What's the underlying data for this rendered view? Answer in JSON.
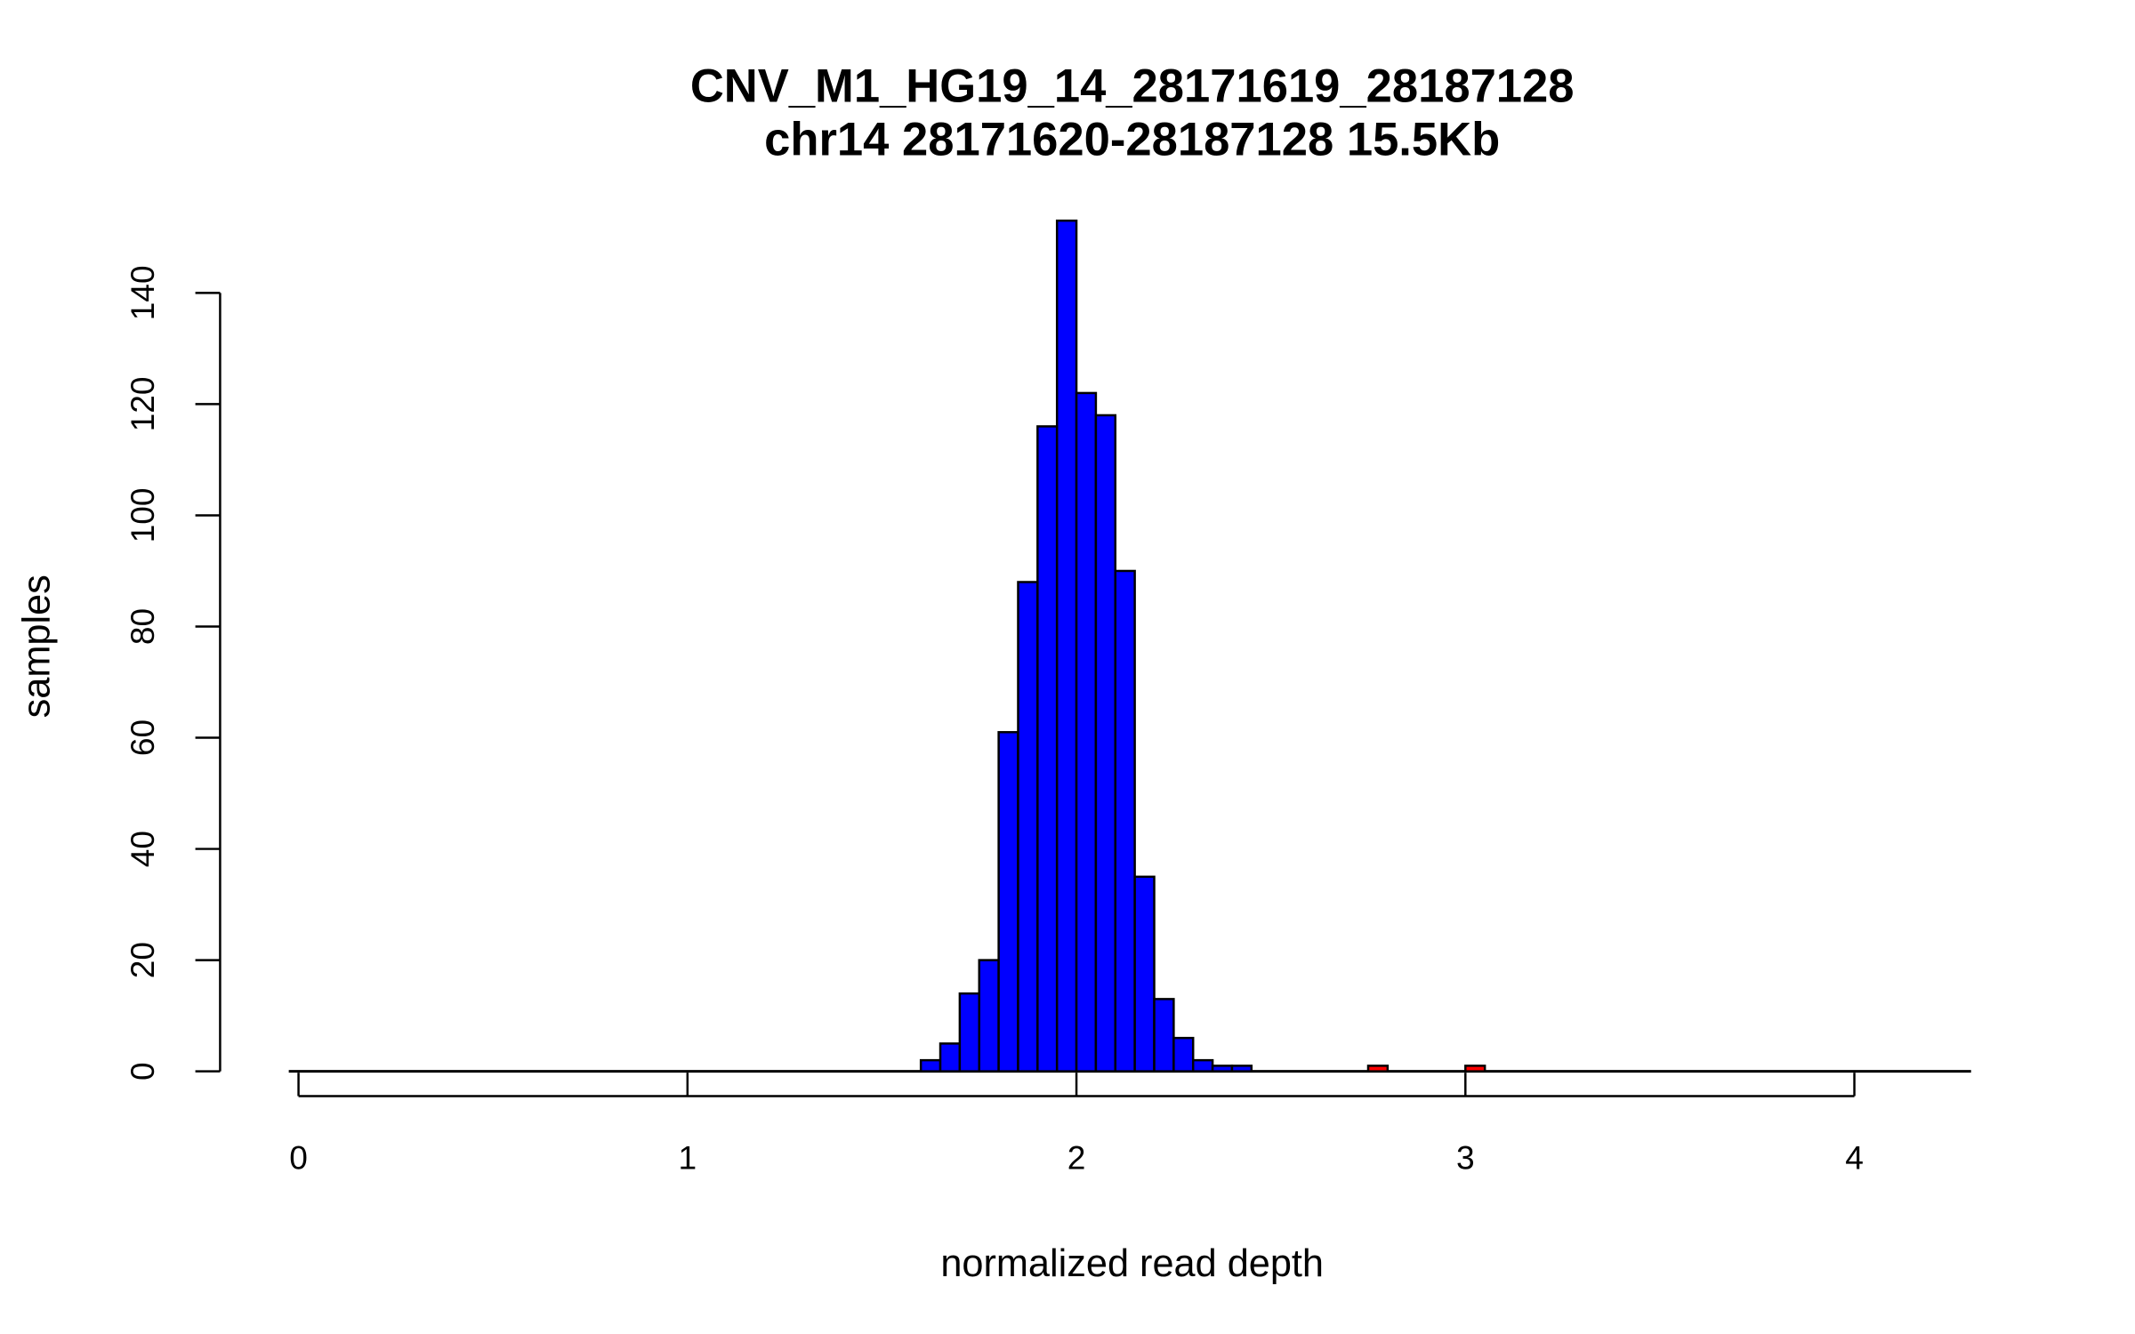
{
  "chart_data": {
    "type": "bar",
    "title": "CNV_M1_HG19_14_28171619_28187128",
    "subtitle": "chr14 28171620-28187128 15.5Kb",
    "xlabel": "normalized read depth",
    "ylabel": "samples",
    "xlim": [
      0,
      4.3
    ],
    "ylim": [
      0,
      150
    ],
    "xticks": [
      "0",
      "1",
      "2",
      "3",
      "4"
    ],
    "yticks": [
      "0",
      "20",
      "40",
      "60",
      "80",
      "100",
      "120",
      "140"
    ],
    "grid": false,
    "bin_width": 0.05,
    "colors": {
      "normal": "#0000ff",
      "outlier": "#ff0000"
    },
    "bins": [
      {
        "start": 1.6,
        "count": 2,
        "group": "normal"
      },
      {
        "start": 1.65,
        "count": 5,
        "group": "normal"
      },
      {
        "start": 1.7,
        "count": 14,
        "group": "normal"
      },
      {
        "start": 1.75,
        "count": 20,
        "group": "normal"
      },
      {
        "start": 1.8,
        "count": 61,
        "group": "normal"
      },
      {
        "start": 1.85,
        "count": 88,
        "group": "normal"
      },
      {
        "start": 1.9,
        "count": 116,
        "group": "normal"
      },
      {
        "start": 1.95,
        "count": 153,
        "group": "normal"
      },
      {
        "start": 2.0,
        "count": 122,
        "group": "normal"
      },
      {
        "start": 2.05,
        "count": 118,
        "group": "normal"
      },
      {
        "start": 2.1,
        "count": 90,
        "group": "normal"
      },
      {
        "start": 2.15,
        "count": 35,
        "group": "normal"
      },
      {
        "start": 2.2,
        "count": 13,
        "group": "normal"
      },
      {
        "start": 2.25,
        "count": 6,
        "group": "normal"
      },
      {
        "start": 2.3,
        "count": 2,
        "group": "normal"
      },
      {
        "start": 2.35,
        "count": 1,
        "group": "normal"
      },
      {
        "start": 2.4,
        "count": 1,
        "group": "normal"
      },
      {
        "start": 2.75,
        "count": 1,
        "group": "outlier"
      },
      {
        "start": 3.0,
        "count": 1,
        "group": "outlier"
      }
    ]
  }
}
